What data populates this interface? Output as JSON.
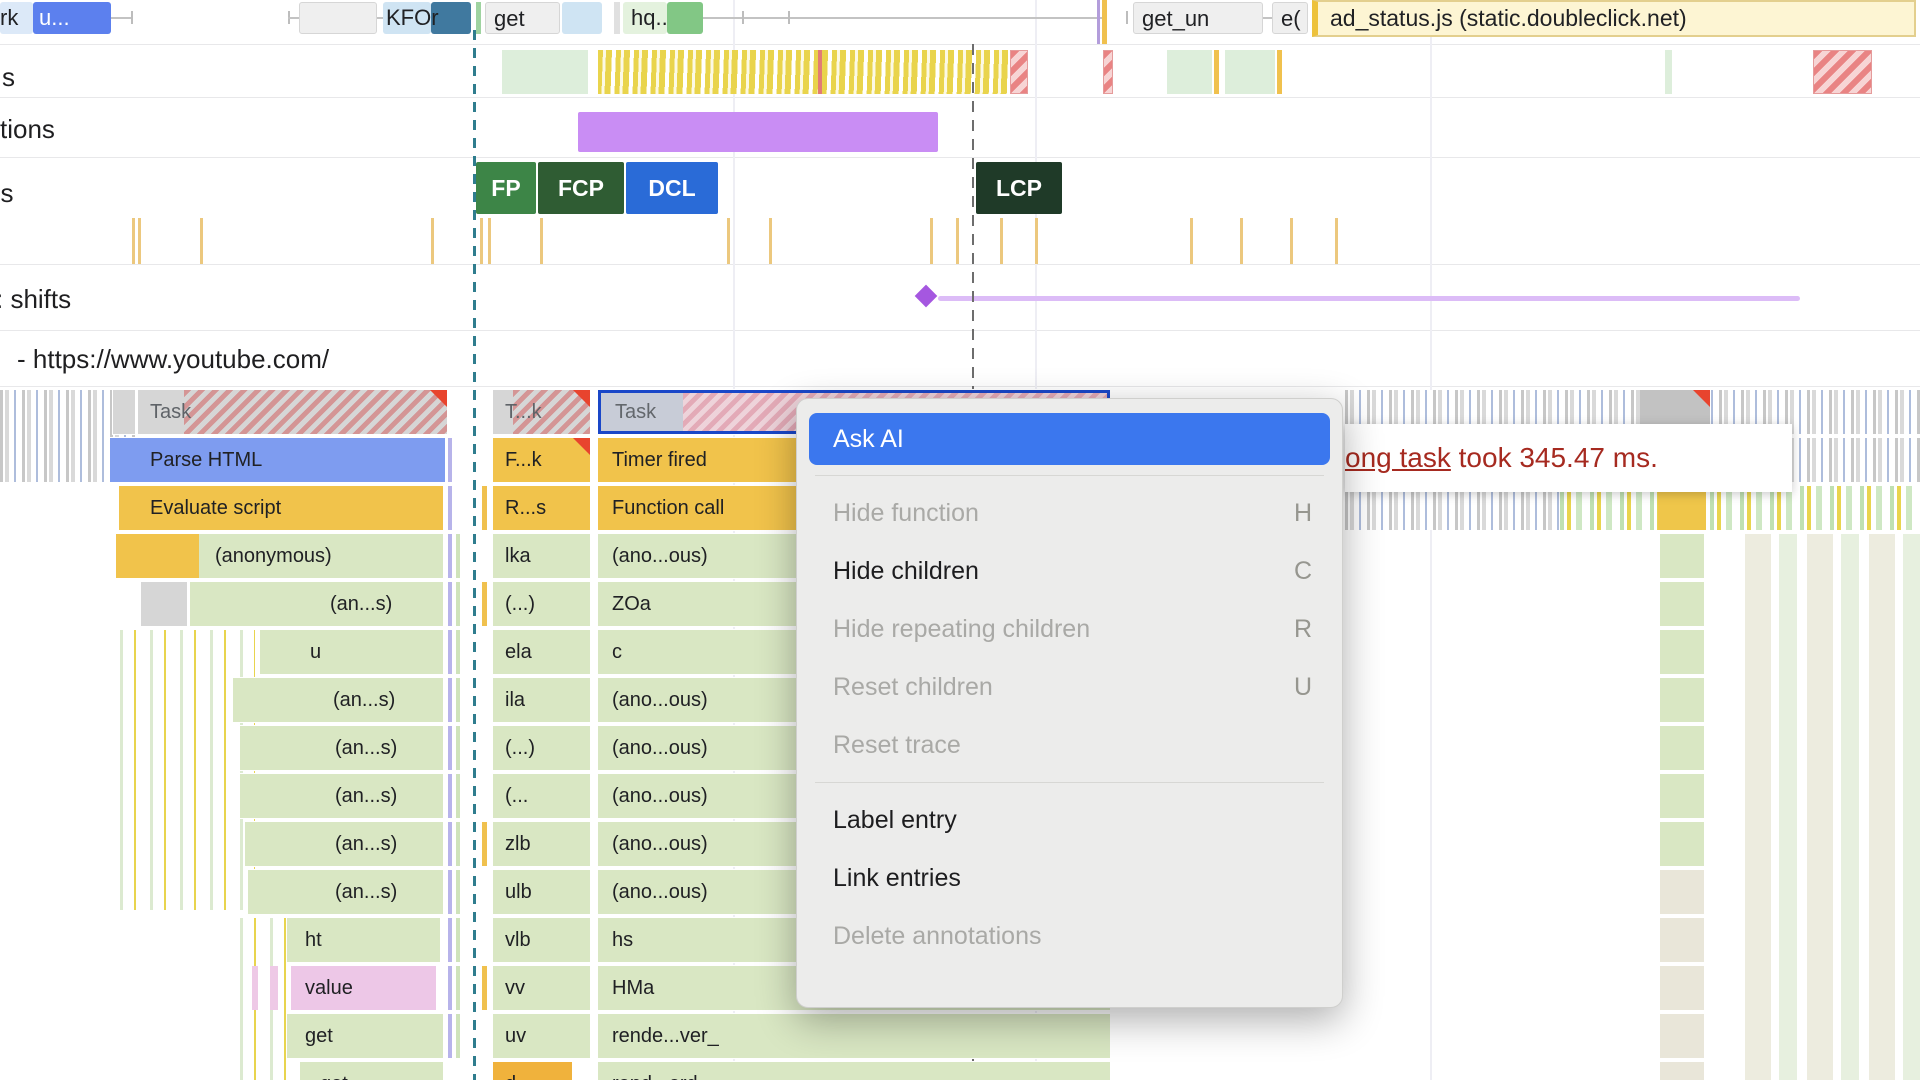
{
  "colors": {
    "accent_blue": "#3b77ee",
    "selection_border": "#1a47c8",
    "script_yellow": "#f1c34b",
    "parse_html_blue": "#7e9cf0",
    "js_frame_green": "#d9e7c3",
    "value_pink": "#edc7e7",
    "task_gray": "#d6d6d6",
    "interaction_purple": "#c98df4",
    "layout_shift_purple": "#a557e0",
    "long_task_red": "#e8442e",
    "tooltip_text_red": "#a62a20",
    "menu_bg": "#ececeb"
  },
  "network": {
    "items": [
      {
        "label": "rk"
      },
      {
        "label": "u..."
      },
      {
        "label": "KFOr"
      },
      {
        "label": "get"
      },
      {
        "label": "hq..."
      },
      {
        "label": "get_un"
      },
      {
        "label": "e("
      },
      {
        "label": "ad_status.js (static.doubleclick.net)"
      }
    ]
  },
  "tracks": {
    "frames_label": "s",
    "interactions_label": "tions",
    "timings_label": "gs",
    "layout_shifts_label": ": shifts",
    "main_label": "- https://www.youtube.com/"
  },
  "timings": {
    "markers": [
      {
        "label": "FP",
        "color": "#3d8547"
      },
      {
        "label": "FCP",
        "color": "#2f5c33"
      },
      {
        "label": "DCL",
        "color": "#2a6bd7"
      },
      {
        "label": "LCP",
        "color": "#1f3a28"
      }
    ]
  },
  "flame": {
    "rows": [
      {
        "a": "Task",
        "b": "T...k",
        "c": "Task"
      },
      {
        "a": "Parse HTML",
        "b": "F...k",
        "c": "Timer fired"
      },
      {
        "a": "Evaluate script",
        "b": "R...s",
        "c": "Function call"
      },
      {
        "a": "(anonymous)",
        "b": "lka",
        "c": "(ano...ous)"
      },
      {
        "a": "(an...s)",
        "b": "(...)",
        "c": "ZOa"
      },
      {
        "a": "u",
        "b": "ela",
        "c": "c"
      },
      {
        "a": "(an...s)",
        "b": "ila",
        "c": "(ano...ous)"
      },
      {
        "a": "(an...s)",
        "b": "(...)",
        "c": "(ano...ous)"
      },
      {
        "a": "(an...s)",
        "b": "(...",
        "c": "(ano...ous)"
      },
      {
        "a": "(an...s)",
        "b": "zlb",
        "c": "(ano...ous)"
      },
      {
        "a": "(an...s)",
        "b": "ulb",
        "c": "(ano...ous)"
      },
      {
        "a": "ht",
        "b": "vlb",
        "c": "hs"
      },
      {
        "a": "value",
        "b": "vv",
        "c": "HMa"
      },
      {
        "a": "get",
        "b": "uv",
        "c": "rende...ver_"
      },
      {
        "a": "get",
        "b": "d",
        "c": "rend...ord"
      }
    ]
  },
  "context_menu": {
    "items": [
      {
        "label": "Ask AI",
        "shortcut": "",
        "state": "highlighted"
      },
      {
        "label": "Hide function",
        "shortcut": "H",
        "state": "disabled"
      },
      {
        "label": "Hide children",
        "shortcut": "C",
        "state": "enabled"
      },
      {
        "label": "Hide repeating children",
        "shortcut": "R",
        "state": "disabled"
      },
      {
        "label": "Reset children",
        "shortcut": "U",
        "state": "disabled"
      },
      {
        "label": "Reset trace",
        "shortcut": "",
        "state": "disabled"
      },
      {
        "label": "Label entry",
        "shortcut": "",
        "state": "enabled"
      },
      {
        "label": "Link entries",
        "shortcut": "",
        "state": "enabled"
      },
      {
        "label": "Delete annotations",
        "shortcut": "",
        "state": "disabled"
      }
    ]
  },
  "tooltip": {
    "link_text": "ong task",
    "rest_text": " took 345.47 ms."
  }
}
